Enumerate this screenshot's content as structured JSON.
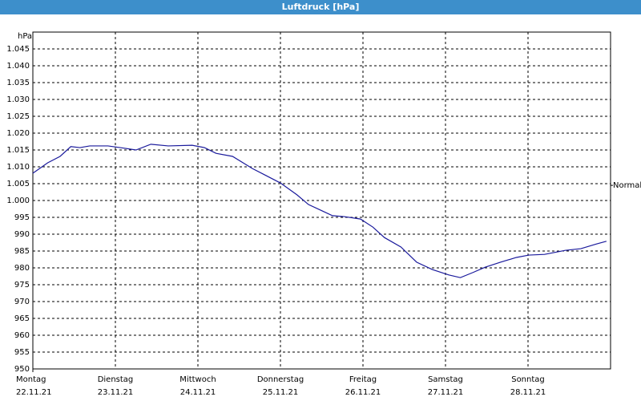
{
  "chart_data": {
    "type": "line",
    "title": "Luftdruck [hPa]",
    "y_label": "hPa",
    "x": [
      0,
      0.18,
      0.33,
      0.46,
      0.57,
      0.69,
      0.91,
      1.06,
      1.25,
      1.43,
      1.64,
      1.93,
      2.08,
      2.22,
      2.42,
      2.66,
      2.81,
      3.0,
      3.2,
      3.34,
      3.49,
      3.63,
      3.78,
      3.97,
      4.12,
      4.26,
      4.46,
      4.65,
      4.84,
      5.04,
      5.18,
      5.33,
      5.48,
      5.67,
      5.86,
      6.01,
      6.2,
      6.45,
      6.64,
      6.83,
      6.95
    ],
    "series": [
      {
        "name": "Luftdruck",
        "color": "#1a1a9c",
        "values": [
          1008.1,
          1011.2,
          1013.1,
          1016.0,
          1015.7,
          1016.2,
          1016.2,
          1015.7,
          1015.0,
          1016.7,
          1016.2,
          1016.4,
          1015.7,
          1014.0,
          1013.1,
          1009.5,
          1007.6,
          1005.2,
          1001.7,
          998.8,
          997.1,
          995.5,
          995.2,
          994.5,
          992.1,
          989.0,
          986.2,
          981.7,
          979.5,
          977.9,
          977.1,
          978.6,
          980.2,
          981.7,
          983.1,
          983.8,
          984.0,
          985.2,
          985.7,
          987.1,
          987.9
        ]
      }
    ],
    "xlim": [
      0,
      7
    ],
    "xticks": [
      {
        "value": 0,
        "label": "Montag"
      },
      {
        "value": 1,
        "label": "Dienstag"
      },
      {
        "value": 2,
        "label": "Mittwoch"
      },
      {
        "value": 3,
        "label": "Donnerstag"
      },
      {
        "value": 4,
        "label": "Freitag"
      },
      {
        "value": 5,
        "label": "Samstag"
      },
      {
        "value": 6,
        "label": "Sonntag"
      }
    ],
    "xtick_dates": [
      "22.11.21",
      "23.11.21",
      "24.11.21",
      "25.11.21",
      "26.11.21",
      "27.11.21",
      "28.11.21"
    ],
    "ylim": [
      950,
      1050
    ],
    "yticks": [
      950,
      955,
      960,
      965,
      970,
      975,
      980,
      985,
      990,
      995,
      {
        "value": 1000,
        "label": "1.000"
      },
      {
        "value": 1005,
        "label": "1.005"
      },
      {
        "value": 1010,
        "label": "1.010"
      },
      {
        "value": 1015,
        "label": "1.015"
      },
      {
        "value": 1020,
        "label": "1.020"
      },
      {
        "value": 1025,
        "label": "1.025"
      },
      {
        "value": 1030,
        "label": "1.030"
      },
      {
        "value": 1035,
        "label": "1.035"
      },
      {
        "value": 1040,
        "label": "1.040"
      },
      {
        "value": 1045,
        "label": "1.045"
      }
    ],
    "reference": {
      "label": "Normal",
      "value": 1004.5
    },
    "grid": true
  }
}
